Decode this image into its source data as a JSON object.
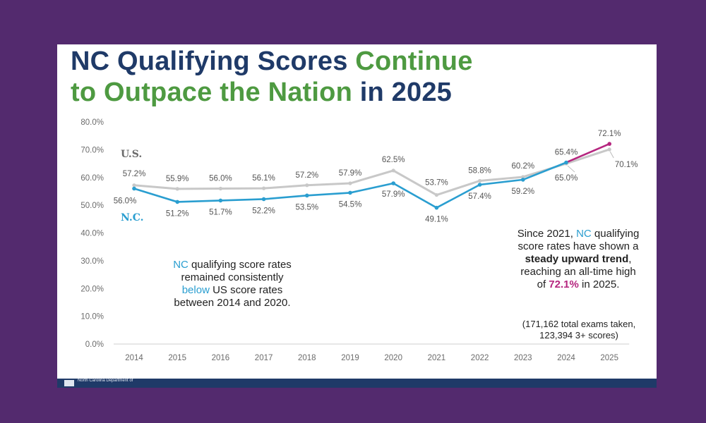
{
  "title": {
    "part1": "NC Qualifying Scores ",
    "part2": "Continue",
    "part3": "to Outpace the Nation",
    "part4": " in 2025"
  },
  "colors": {
    "background": "#532a6e",
    "title_navy": "#1f3a68",
    "title_green": "#4e9a41",
    "us_line": "#c8c8c8",
    "nc_line": "#2a9ed0",
    "nc_highlight": "#b5267f",
    "footer": "#1f3a68"
  },
  "chart_data": {
    "type": "line",
    "title": "NC Qualifying Scores Continue to Outpace the Nation in 2025",
    "xlabel": "",
    "ylabel": "",
    "x": [
      "2014",
      "2015",
      "2016",
      "2017",
      "2018",
      "2019",
      "2020",
      "2021",
      "2022",
      "2023",
      "2024",
      "2025"
    ],
    "ylim": [
      0,
      80
    ],
    "yticks": [
      "0.0%",
      "10.0%",
      "20.0%",
      "30.0%",
      "40.0%",
      "50.0%",
      "60.0%",
      "70.0%",
      "80.0%"
    ],
    "grid": false,
    "series": [
      {
        "name": "U.S.",
        "values": [
          57.2,
          55.9,
          56.0,
          56.1,
          57.2,
          57.9,
          62.5,
          53.7,
          58.8,
          60.2,
          65.0,
          70.1
        ],
        "labels": [
          "57.2%",
          "55.9%",
          "56.0%",
          "56.1%",
          "57.2%",
          "57.9%",
          "62.5%",
          "53.7%",
          "58.8%",
          "60.2%",
          "65.0%",
          "70.1%"
        ]
      },
      {
        "name": "N.C.",
        "values": [
          56.0,
          51.2,
          51.7,
          52.2,
          53.5,
          54.5,
          57.9,
          49.1,
          57.4,
          59.2,
          65.4,
          72.1
        ],
        "labels": [
          "56.0%",
          "51.2%",
          "51.7%",
          "52.2%",
          "53.5%",
          "54.5%",
          "57.9%",
          "49.1%",
          "57.4%",
          "59.2%",
          "65.4%",
          "72.1%"
        ]
      }
    ],
    "legend": "inline-left"
  },
  "notes": {
    "left": {
      "nc": "NC",
      "l1": " qualifying score rates",
      "l2": "remained consistently",
      "below": "below",
      "l3": " US score rates",
      "l4": "between 2014 and 2020."
    },
    "right": {
      "p1": "Since 2021, ",
      "nc": "NC",
      "p2": " qualifying",
      "l2": "score rates have shown a",
      "bold": "steady upward trend",
      "comma": ",",
      "l4": "reaching an all-time high",
      "of": "of ",
      "pct": "72.1%",
      "in": " in 2025."
    },
    "exams": {
      "l1": "(171,162 total exams taken,",
      "l2": "123,394 3+ scores)"
    }
  },
  "footer": {
    "org": "North Carolina Department of"
  }
}
